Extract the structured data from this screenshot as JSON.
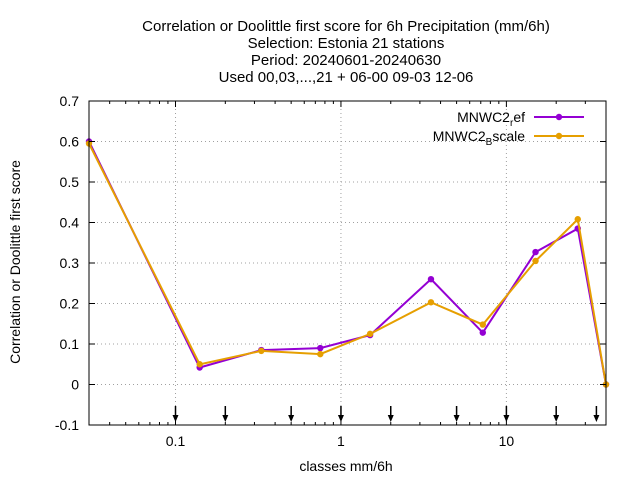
{
  "chart_data": {
    "type": "line",
    "title_lines": [
      "Correlation or Doolittle first score  for 6h Precipitation (mm/6h)",
      "Selection: Estonia     21 stations",
      "Period: 20240601-20240630",
      "Used 00,03,...,21 + 06-00 09-03 12-06"
    ],
    "xlabel": "classes mm/6h",
    "ylabel": "Correlation or Doolittle first score",
    "xscale": "log",
    "xlim": [
      0.03,
      40
    ],
    "ylim": [
      -0.1,
      0.7
    ],
    "yticks": [
      "-0.1",
      "0",
      "0.1",
      "0.2",
      "0.3",
      "0.4",
      "0.5",
      "0.6",
      "0.7"
    ],
    "yticks_values": [
      -0.1,
      0,
      0.1,
      0.2,
      0.3,
      0.4,
      0.5,
      0.6,
      0.7
    ],
    "xticks": [
      "0.1",
      "1",
      "10"
    ],
    "xticks_values": [
      0.1,
      1,
      10
    ],
    "grid": true,
    "legend_position": "top-right",
    "threshold_arrows": [
      0.1,
      0.2,
      0.5,
      1,
      2,
      5,
      10,
      20,
      35
    ],
    "series": [
      {
        "name_main": "MNWC2",
        "name_sub": "r",
        "name_rest": "ef",
        "color": "#9400d3",
        "x": [
          0.03,
          0.14,
          0.33,
          0.75,
          1.5,
          3.5,
          7.2,
          15,
          27,
          40
        ],
        "values": [
          0.6,
          0.042,
          0.085,
          0.09,
          0.122,
          0.26,
          0.128,
          0.327,
          0.385,
          0.0
        ]
      },
      {
        "name_main": "MNWC2",
        "name_sub": "B",
        "name_rest": "scale",
        "color": "#e69f00",
        "x": [
          0.03,
          0.14,
          0.33,
          0.75,
          1.5,
          3.5,
          7.2,
          15,
          27,
          40
        ],
        "values": [
          0.595,
          0.05,
          0.083,
          0.075,
          0.125,
          0.203,
          0.148,
          0.305,
          0.408,
          0.0
        ]
      }
    ]
  }
}
